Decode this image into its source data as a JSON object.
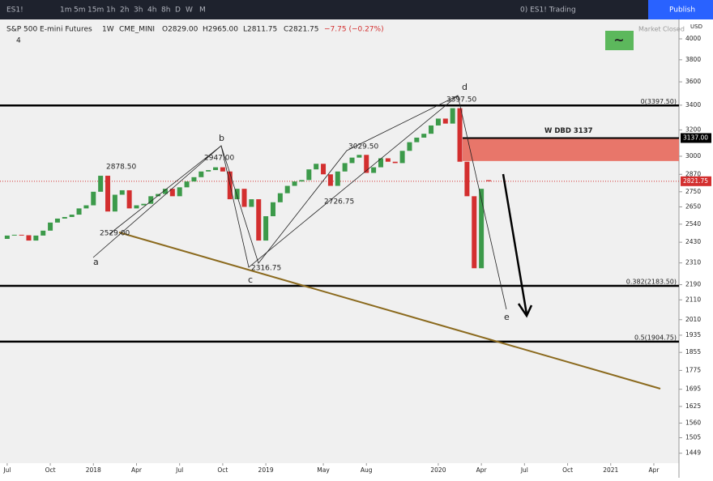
{
  "toolbar": {
    "symbol": "ES1!",
    "intervals": [
      "1m",
      "5m",
      "15m",
      "1h",
      "2h",
      "3h",
      "4h",
      "8h",
      "D",
      "W",
      "M"
    ],
    "layout": "0) ES1! Trading",
    "publish": "Publish"
  },
  "header": {
    "name": "S&P 500 E-mini Futures",
    "interval": "1W",
    "exchange": "CME_MINI",
    "open": "O2829.00",
    "high": "H2965.00",
    "low": "L2811.75",
    "close": "C2821.75",
    "change": "−7.75 (−0.27%)",
    "market": "Market Closed",
    "indicator_count": "4",
    "badge": "~"
  },
  "chart_data": {
    "type": "candlestick",
    "log": true,
    "up_color": "#3c9a4a",
    "down_color": "#d32f2f",
    "xlim": [
      -0.5,
      46.75
    ],
    "ylim": [
      1414,
      4195
    ],
    "xticks": [
      {
        "value": 0,
        "label": "Jul"
      },
      {
        "value": 3,
        "label": "Oct"
      },
      {
        "value": 6,
        "label": "2018"
      },
      {
        "value": 9,
        "label": "Apr"
      },
      {
        "value": 12,
        "label": "Jul"
      },
      {
        "value": 15,
        "label": "Oct"
      },
      {
        "value": 18,
        "label": "2019"
      },
      {
        "value": 22,
        "label": "May"
      },
      {
        "value": 25,
        "label": "Aug"
      },
      {
        "value": 30,
        "label": "2020"
      },
      {
        "value": 33,
        "label": "Apr"
      },
      {
        "value": 36,
        "label": "Jul"
      },
      {
        "value": 39,
        "label": "Oct"
      },
      {
        "value": 42,
        "label": "2021"
      },
      {
        "value": 45,
        "label": "Apr"
      }
    ],
    "yticks": [
      4000,
      3800,
      3600,
      3400,
      3200,
      3000,
      2870,
      2750,
      2650,
      2540,
      2430,
      2310,
      2190,
      2110,
      2010,
      1935,
      1855,
      1775,
      1695,
      1625,
      1560,
      1505,
      1449
    ],
    "currency": "USD",
    "x": [
      0,
      0.5,
      1,
      1.5,
      2,
      2.5,
      3,
      3.5,
      4,
      4.5,
      5,
      5.5,
      6,
      6.5,
      7,
      7.5,
      8,
      8.5,
      9,
      9.5,
      10,
      10.5,
      11,
      11.5,
      12,
      12.5,
      13,
      13.5,
      14,
      14.5,
      15,
      15.5,
      16,
      16.5,
      17,
      17.5,
      18,
      18.5,
      19,
      19.5,
      20,
      20.5,
      21,
      21.5,
      22,
      22.5,
      23,
      23.5,
      24,
      24.5,
      25,
      25.5,
      26,
      26.5,
      27,
      27.5,
      28,
      28.5,
      29,
      29.5,
      30,
      30.5,
      31,
      31.5,
      32,
      32.5,
      33,
      33.5
    ],
    "open": [
      2450,
      2470,
      2475,
      2472,
      2440,
      2470,
      2500,
      2550,
      2575,
      2585,
      2600,
      2640,
      2660,
      2750,
      2860,
      2620,
      2730,
      2760,
      2640,
      2660,
      2670,
      2720,
      2735,
      2770,
      2720,
      2780,
      2820,
      2850,
      2890,
      2900,
      2920,
      2890,
      2700,
      2770,
      2650,
      2700,
      2440,
      2590,
      2680,
      2740,
      2790,
      2820,
      2830,
      2905,
      2945,
      2870,
      2790,
      2890,
      2950,
      2990,
      3010,
      2880,
      2920,
      2985,
      2960,
      2950,
      3040,
      3105,
      3140,
      3170,
      3235,
      3290,
      3250,
      3375,
      2960,
      2720,
      2280,
      2829
    ],
    "close": [
      2470,
      2475,
      2472,
      2440,
      2470,
      2500,
      2550,
      2575,
      2585,
      2600,
      2640,
      2660,
      2750,
      2860,
      2620,
      2730,
      2760,
      2640,
      2660,
      2670,
      2720,
      2735,
      2770,
      2720,
      2780,
      2820,
      2850,
      2890,
      2900,
      2920,
      2890,
      2700,
      2770,
      2650,
      2700,
      2440,
      2590,
      2680,
      2740,
      2790,
      2820,
      2830,
      2905,
      2945,
      2870,
      2790,
      2890,
      2950,
      2990,
      3010,
      2880,
      2920,
      2985,
      2960,
      2950,
      3040,
      3105,
      3140,
      3170,
      3235,
      3290,
      3250,
      3375,
      2960,
      2720,
      2280,
      2770,
      2821.75
    ],
    "levels": [
      {
        "value": 3397.5,
        "label": "0(3397.50)"
      },
      {
        "value": 2183.5,
        "label": "0.382(2183.50)"
      },
      {
        "value": 1904.75,
        "label": "0.5(1904.75)"
      }
    ],
    "zone": {
      "label": "W DBD 3137",
      "top": 3137,
      "bottom": 2965
    },
    "price_tags": [
      {
        "value": 3137,
        "label": "3137.00",
        "color": "#000000"
      },
      {
        "value": 2821.75,
        "label": "2821.75",
        "color": "#d32f2f"
      }
    ],
    "point_labels": [
      "2878.50",
      "2947.00",
      "3029.50",
      "3397.50",
      "2529.00",
      "2316.75",
      "2726.75"
    ],
    "waves": [
      "a",
      "b",
      "c",
      "d",
      "e"
    ]
  }
}
